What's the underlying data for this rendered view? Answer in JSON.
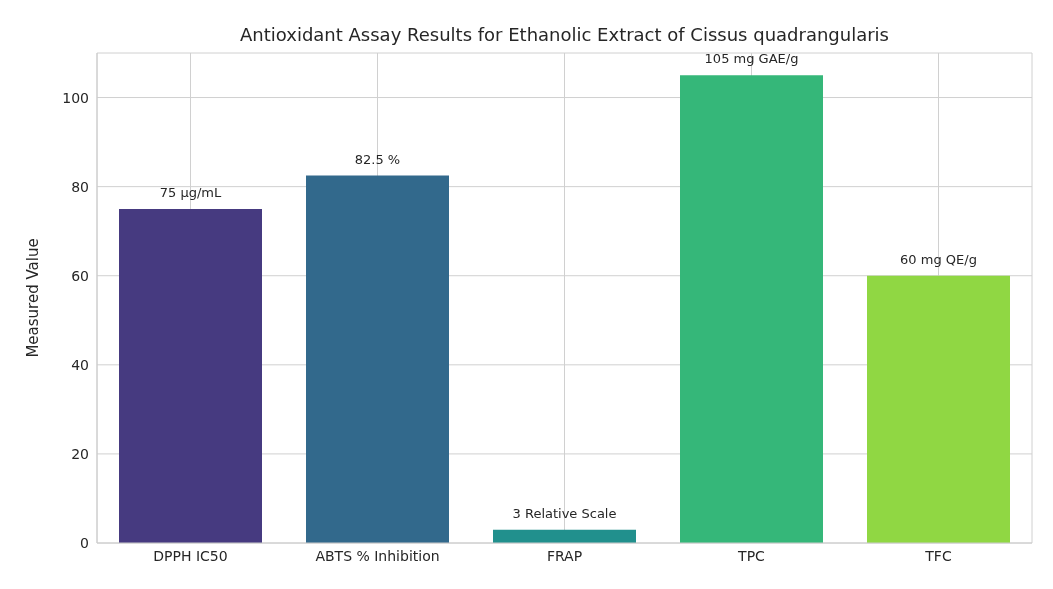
{
  "chart_data": {
    "type": "bar",
    "title": "Antioxidant Assay Results for Ethanolic Extract of Cissus quadrangularis",
    "ylabel": "Measured Value",
    "categories": [
      "DPPH IC50",
      "ABTS % Inhibition",
      "FRAP",
      "TPC",
      "TFC"
    ],
    "values": [
      75,
      82.5,
      3,
      105,
      60
    ],
    "colors": [
      "#463a80",
      "#32698c",
      "#21908d",
      "#35b779",
      "#90d743"
    ],
    "value_labels": [
      "75 µg/mL",
      "82.5 %",
      "3 Relative Scale",
      "105 mg GAE/g",
      "60 mg QE/g"
    ],
    "ylim": [
      0,
      110
    ],
    "yticks": [
      0,
      20,
      40,
      60,
      80,
      100
    ],
    "grid": true
  }
}
